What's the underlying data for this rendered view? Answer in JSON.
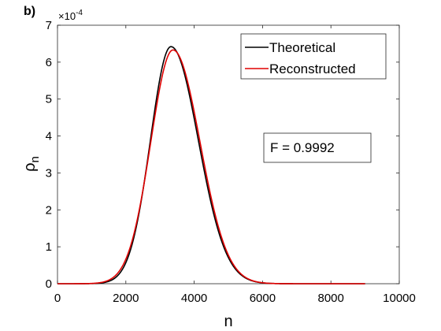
{
  "panel_label": "b)",
  "chart_data": {
    "type": "line",
    "xlabel": "n",
    "ylabel_base": "ρ",
    "ylabel_sub": "n",
    "xlim": [
      0,
      10000
    ],
    "ylim": [
      0,
      7
    ],
    "xticks": [
      0,
      2000,
      4000,
      6000,
      8000,
      10000
    ],
    "xtick_labels": [
      "0",
      "2000",
      "4000",
      "6000",
      "8000",
      "10000"
    ],
    "yticks": [
      0,
      1,
      2,
      3,
      4,
      5,
      6,
      7
    ],
    "ytick_labels": [
      "0",
      "1",
      "2",
      "3",
      "4",
      "5",
      "6",
      "7"
    ],
    "y_multiplier": {
      "base": "×10",
      "exponent": "-4"
    },
    "grid": false,
    "legend_position": "top-right",
    "series": [
      {
        "name": "Theoretical",
        "color": "#000000",
        "peak": 6.42,
        "peak_x": 3320,
        "left_width": 600,
        "right_width": 800,
        "x_range": [
          0,
          9000
        ]
      },
      {
        "name": "Reconstructed",
        "color": "#e00000",
        "peak": 6.33,
        "peak_x": 3380,
        "left_width": 650,
        "right_width": 790,
        "x_range": [
          0,
          9000
        ]
      }
    ],
    "annotation": "F = 0.9992"
  }
}
